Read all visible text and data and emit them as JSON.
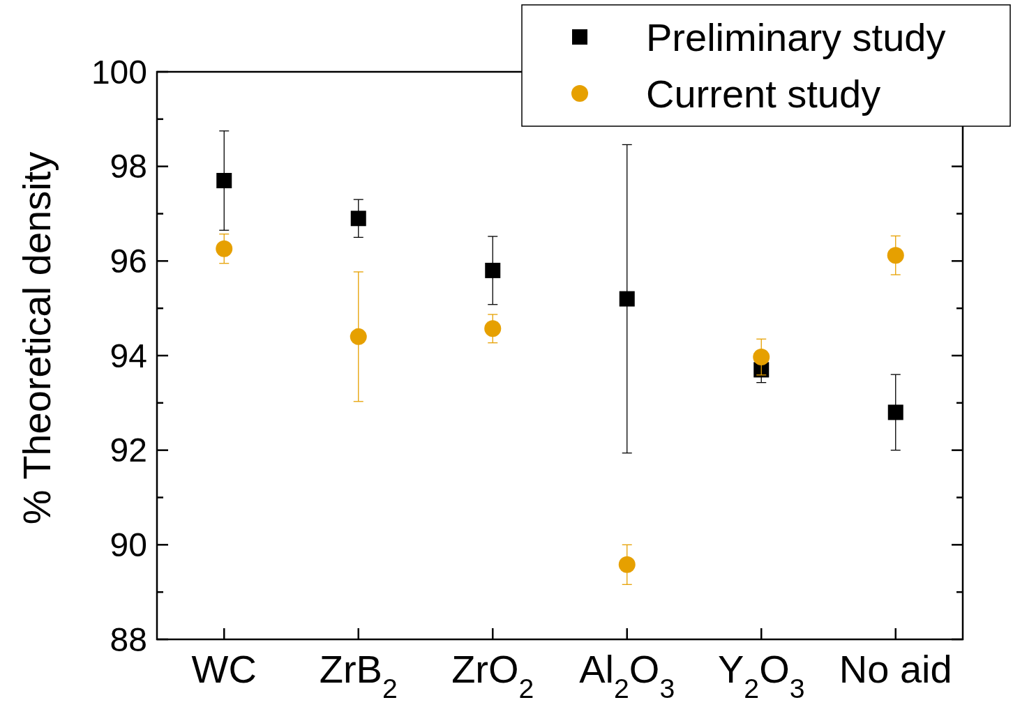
{
  "chart_data": {
    "type": "scatter",
    "ylabel": "% Theoretical density",
    "categories": [
      "WC",
      "ZrB$_{2}$",
      "ZrO$_{2}$",
      "Al$_{2}$O$_{3}$",
      "Y$_{2}$O$_{3}$",
      "No aid"
    ],
    "series": [
      {
        "name": "Preliminary study",
        "color": "#000000",
        "marker": "square",
        "values": [
          97.7,
          96.9,
          95.8,
          95.2,
          93.7,
          92.8
        ],
        "errors": [
          1.05,
          0.4,
          0.72,
          3.26,
          0.27,
          0.8
        ]
      },
      {
        "name": "Current study",
        "color": "#e6a000",
        "marker": "circle",
        "values": [
          96.26,
          94.4,
          94.57,
          89.58,
          93.97,
          96.12
        ],
        "errors": [
          0.31,
          1.37,
          0.3,
          0.42,
          0.38,
          0.41
        ]
      }
    ],
    "ylim": [
      88,
      100
    ],
    "yticks": [
      88,
      {
        "value": 89,
        "label": null
      },
      90,
      {
        "value": 91,
        "label": null
      },
      92,
      {
        "value": 93,
        "label": null
      },
      94,
      {
        "value": 95,
        "label": null
      },
      96,
      {
        "value": 97,
        "label": null
      },
      98,
      {
        "value": 99,
        "label": null
      },
      100
    ],
    "legend": "top right",
    "grid": false
  }
}
